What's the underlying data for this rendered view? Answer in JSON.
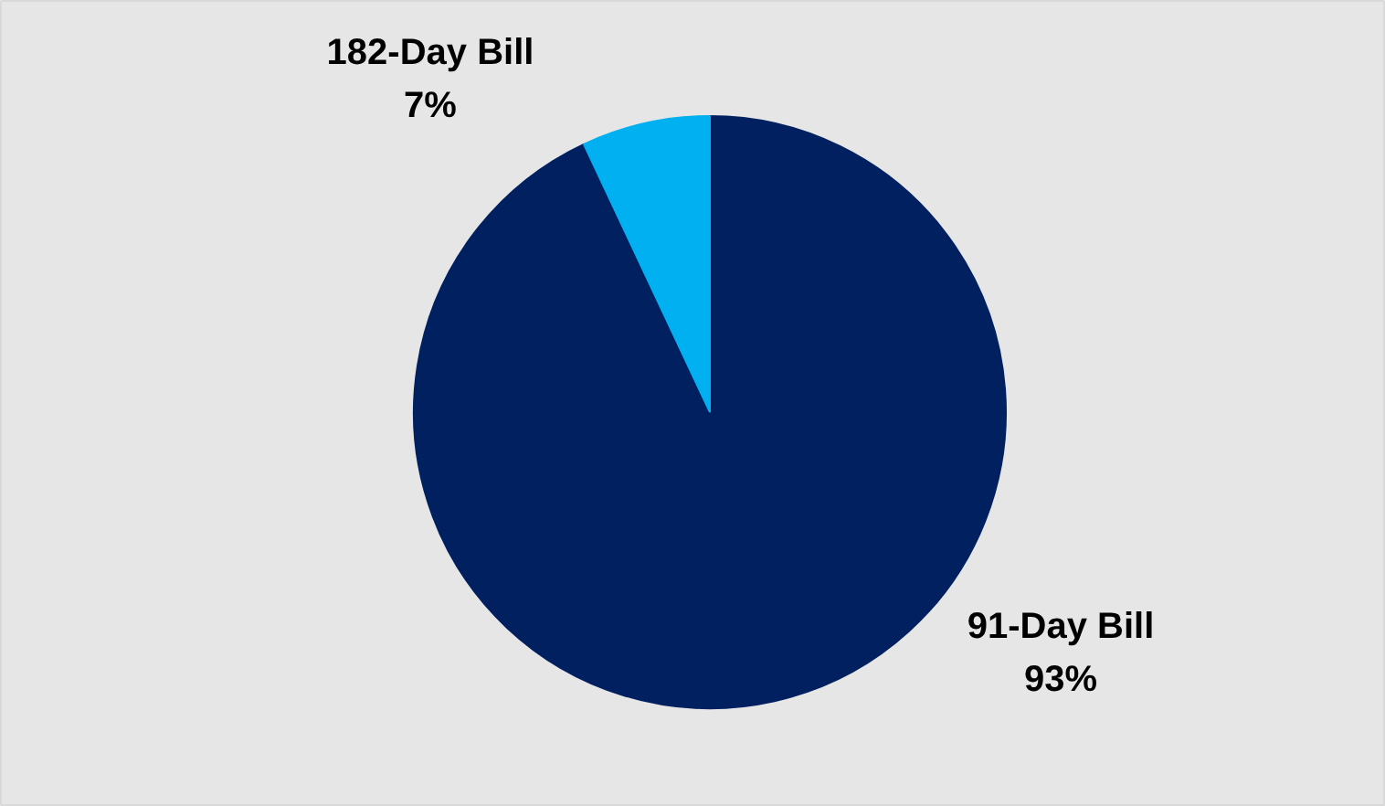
{
  "chart_data": {
    "type": "pie",
    "categories": [
      "91-Day Bill",
      "182-Day Bill"
    ],
    "values": [
      93,
      7
    ],
    "colors": [
      "#002060",
      "#00b0f0"
    ],
    "value_labels": [
      "93%",
      "7%"
    ],
    "legend": false
  }
}
